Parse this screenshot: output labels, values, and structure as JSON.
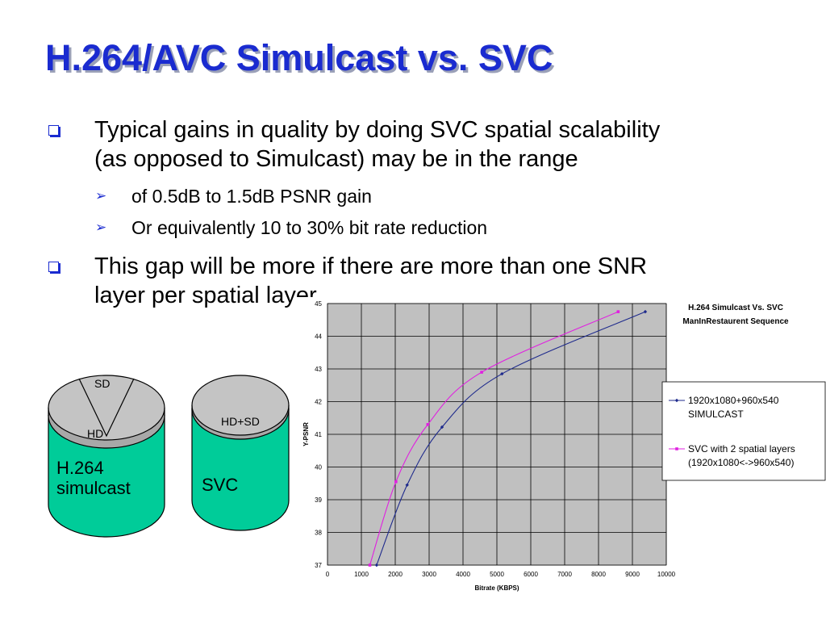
{
  "slide": {
    "title": "H.264/AVC Simulcast vs. SVC",
    "bullets": [
      {
        "lines": [
          "Typical gains in quality by doing SVC spatial scalability",
          "(as opposed to Simulcast) may be in the range"
        ],
        "sub": [
          "of 0.5dB to 1.5dB PSNR gain",
          "Or equivalently 10 to 30% bit rate reduction"
        ]
      },
      {
        "lines": [
          "This gap will be more if there are more than one SNR",
          "layer per spatial layer"
        ],
        "sub": []
      }
    ]
  },
  "cylinders": {
    "simulcast": {
      "top_label": "SD",
      "mid_label": "HD",
      "body_label_1": "H.264",
      "body_label_2": "simulcast"
    },
    "svc": {
      "top_label": "HD+SD",
      "body_label": "SVC"
    },
    "colors": {
      "body": "#00cc99",
      "top": "#c0c0c0",
      "outline": "#000000"
    }
  },
  "chart_data": {
    "type": "line",
    "title": [
      "H.264 Simulcast Vs. SVC",
      "ManInRestaurent Sequence"
    ],
    "xlabel": "Bitrate (KBPS)",
    "ylabel": "Y-PSNR",
    "xlim": [
      0,
      10000
    ],
    "ylim": [
      37,
      45
    ],
    "xticks": [
      0,
      1000,
      2000,
      3000,
      4000,
      5000,
      6000,
      7000,
      8000,
      9000,
      10000
    ],
    "yticks": [
      37,
      38,
      39,
      40,
      41,
      42,
      43,
      44,
      45
    ],
    "grid": true,
    "plot_background": "#c0c0c0",
    "legend_position": "right",
    "series": [
      {
        "name": "1920x1080+960x540 SIMULCAST",
        "legend_lines": [
          "1920x1080+960x540",
          "SIMULCAST"
        ],
        "color": "#1e2a8c",
        "marker": "diamond",
        "x": [
          1450,
          2350,
          3380,
          5150,
          9380
        ],
        "y": [
          37.0,
          39.45,
          41.22,
          42.85,
          44.75
        ]
      },
      {
        "name": "SVC with 2 spatial layers (1920x1080<->960x540)",
        "legend_lines": [
          "SVC with 2 spatial layers",
          "(1920x1080<->960x540)"
        ],
        "color": "#e020e0",
        "marker": "square",
        "x": [
          1250,
          2020,
          2960,
          4550,
          8580
        ],
        "y": [
          37.0,
          39.55,
          41.3,
          42.9,
          44.75
        ]
      }
    ]
  }
}
